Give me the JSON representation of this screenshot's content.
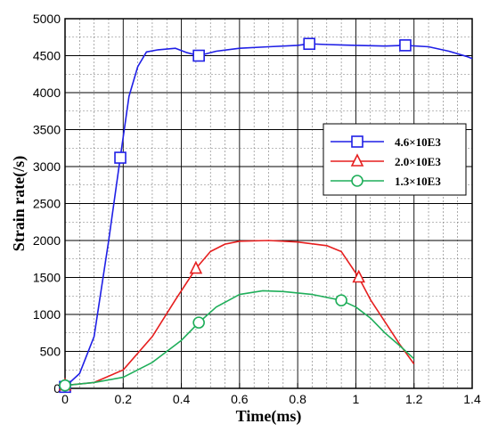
{
  "chart_data": {
    "type": "line",
    "xlabel": "Time(ms)",
    "ylabel": "Strain rate(/s)",
    "xlim": [
      0,
      1.4
    ],
    "ylim": [
      0,
      5000
    ],
    "x_ticks": [
      "0",
      "0.2",
      "0.4",
      "0.6",
      "0.8",
      "1",
      "1.2",
      "1.4"
    ],
    "y_ticks": [
      "0",
      "500",
      "1000",
      "1500",
      "2000",
      "2500",
      "3000",
      "3500",
      "4000",
      "4500",
      "5000"
    ],
    "grid": true,
    "legend_position": "right",
    "series": [
      {
        "name": "4.6×10E3",
        "color": "#1f1fe6",
        "marker": "square",
        "x": [
          0,
          0.05,
          0.1,
          0.15,
          0.19,
          0.22,
          0.25,
          0.28,
          0.32,
          0.38,
          0.42,
          0.46,
          0.52,
          0.6,
          0.7,
          0.8,
          0.84,
          0.9,
          1.0,
          1.1,
          1.17,
          1.25,
          1.32,
          1.38,
          1.4
        ],
        "y": [
          20,
          200,
          700,
          2000,
          3120,
          3950,
          4350,
          4550,
          4580,
          4600,
          4540,
          4500,
          4560,
          4600,
          4620,
          4640,
          4660,
          4650,
          4640,
          4630,
          4640,
          4620,
          4560,
          4490,
          4460
        ],
        "marker_x": [
          0,
          0.19,
          0.46,
          0.84,
          1.17
        ],
        "marker_y": [
          20,
          3120,
          4500,
          4660,
          4640
        ]
      },
      {
        "name": "2.0×10E3",
        "color": "#e61f1f",
        "marker": "triangle",
        "x": [
          0,
          0.1,
          0.2,
          0.3,
          0.38,
          0.45,
          0.5,
          0.55,
          0.6,
          0.7,
          0.8,
          0.9,
          0.95,
          1.01,
          1.05,
          1.1,
          1.15,
          1.2
        ],
        "y": [
          40,
          80,
          250,
          700,
          1200,
          1620,
          1850,
          1950,
          1990,
          2000,
          1980,
          1930,
          1850,
          1500,
          1200,
          900,
          600,
          330
        ],
        "marker_x": [
          0,
          0.45,
          1.01
        ],
        "marker_y": [
          40,
          1620,
          1500
        ]
      },
      {
        "name": "1.3×10E3",
        "color": "#1fae5a",
        "marker": "circle",
        "x": [
          0,
          0.1,
          0.2,
          0.3,
          0.4,
          0.46,
          0.52,
          0.6,
          0.68,
          0.75,
          0.85,
          0.95,
          1.0,
          1.05,
          1.1,
          1.15,
          1.2
        ],
        "y": [
          40,
          80,
          150,
          350,
          650,
          890,
          1100,
          1270,
          1320,
          1310,
          1270,
          1190,
          1100,
          950,
          750,
          580,
          400
        ],
        "marker_x": [
          0,
          0.46,
          0.95
        ],
        "marker_y": [
          40,
          890,
          1190
        ]
      }
    ]
  }
}
